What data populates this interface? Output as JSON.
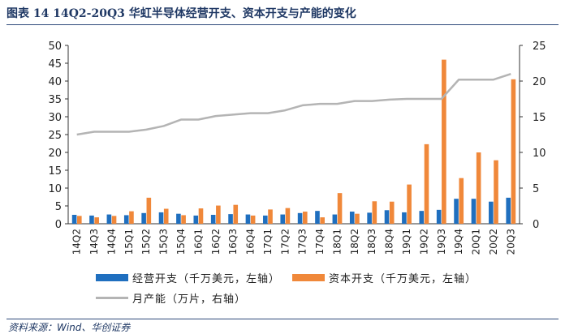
{
  "header": {
    "title": "图表 14   14Q2-20Q3 华虹半导体经营开支、资本开支与产能的变化"
  },
  "footer": {
    "source": "资料来源：Wind、华创证券"
  },
  "colors": {
    "opex": "#1f6fbf",
    "capex": "#f0883a",
    "capacity": "#b4b4b4",
    "axis": "#333333"
  },
  "chart_data": {
    "type": "bar",
    "title": "",
    "categories": [
      "14Q2",
      "14Q3",
      "14Q4",
      "15Q1",
      "15Q2",
      "15Q3",
      "15Q4",
      "16Q1",
      "16Q2",
      "16Q3",
      "16Q4",
      "17Q1",
      "17Q2",
      "17Q3",
      "17Q4",
      "18Q1",
      "18Q2",
      "18Q3",
      "18Q4",
      "19Q1",
      "19Q2",
      "19Q3",
      "19Q4",
      "20Q1",
      "20Q2",
      "20Q3"
    ],
    "left_axis": {
      "ylim": [
        0,
        50
      ],
      "ticks": [
        0,
        5,
        10,
        15,
        20,
        25,
        30,
        35,
        40,
        45,
        50
      ]
    },
    "right_axis": {
      "ylim": [
        0,
        25
      ],
      "ticks": [
        0,
        5,
        10,
        15,
        20,
        25
      ]
    },
    "series": [
      {
        "name": "经营开支（千万美元，左轴）",
        "type": "bar",
        "axis": "left",
        "values": [
          2.5,
          2.3,
          2.6,
          2.4,
          3.0,
          3.2,
          2.8,
          2.3,
          2.5,
          2.7,
          2.6,
          2.3,
          2.6,
          3.0,
          3.6,
          2.6,
          3.4,
          3.1,
          3.8,
          3.2,
          3.6,
          3.9,
          7.0,
          7.0,
          6.2,
          7.3
        ]
      },
      {
        "name": "资本开支（千万美元，左轴）",
        "type": "bar",
        "axis": "left",
        "values": [
          2.2,
          1.8,
          2.2,
          3.5,
          7.3,
          4.2,
          2.4,
          4.3,
          5.1,
          5.3,
          2.3,
          4.0,
          4.4,
          3.4,
          1.8,
          8.6,
          2.8,
          6.3,
          6.2,
          11.0,
          22.3,
          46.0,
          12.8,
          20.0,
          17.8,
          40.5
        ]
      },
      {
        "name": "月产能（万片，右轴）",
        "type": "line",
        "axis": "right",
        "values": [
          12.5,
          12.9,
          12.9,
          12.9,
          13.2,
          13.7,
          14.6,
          14.6,
          15.1,
          15.3,
          15.5,
          15.5,
          15.9,
          16.6,
          16.8,
          16.8,
          17.2,
          17.2,
          17.4,
          17.5,
          17.5,
          17.5,
          20.2,
          20.2,
          20.2,
          21.0
        ]
      }
    ]
  }
}
